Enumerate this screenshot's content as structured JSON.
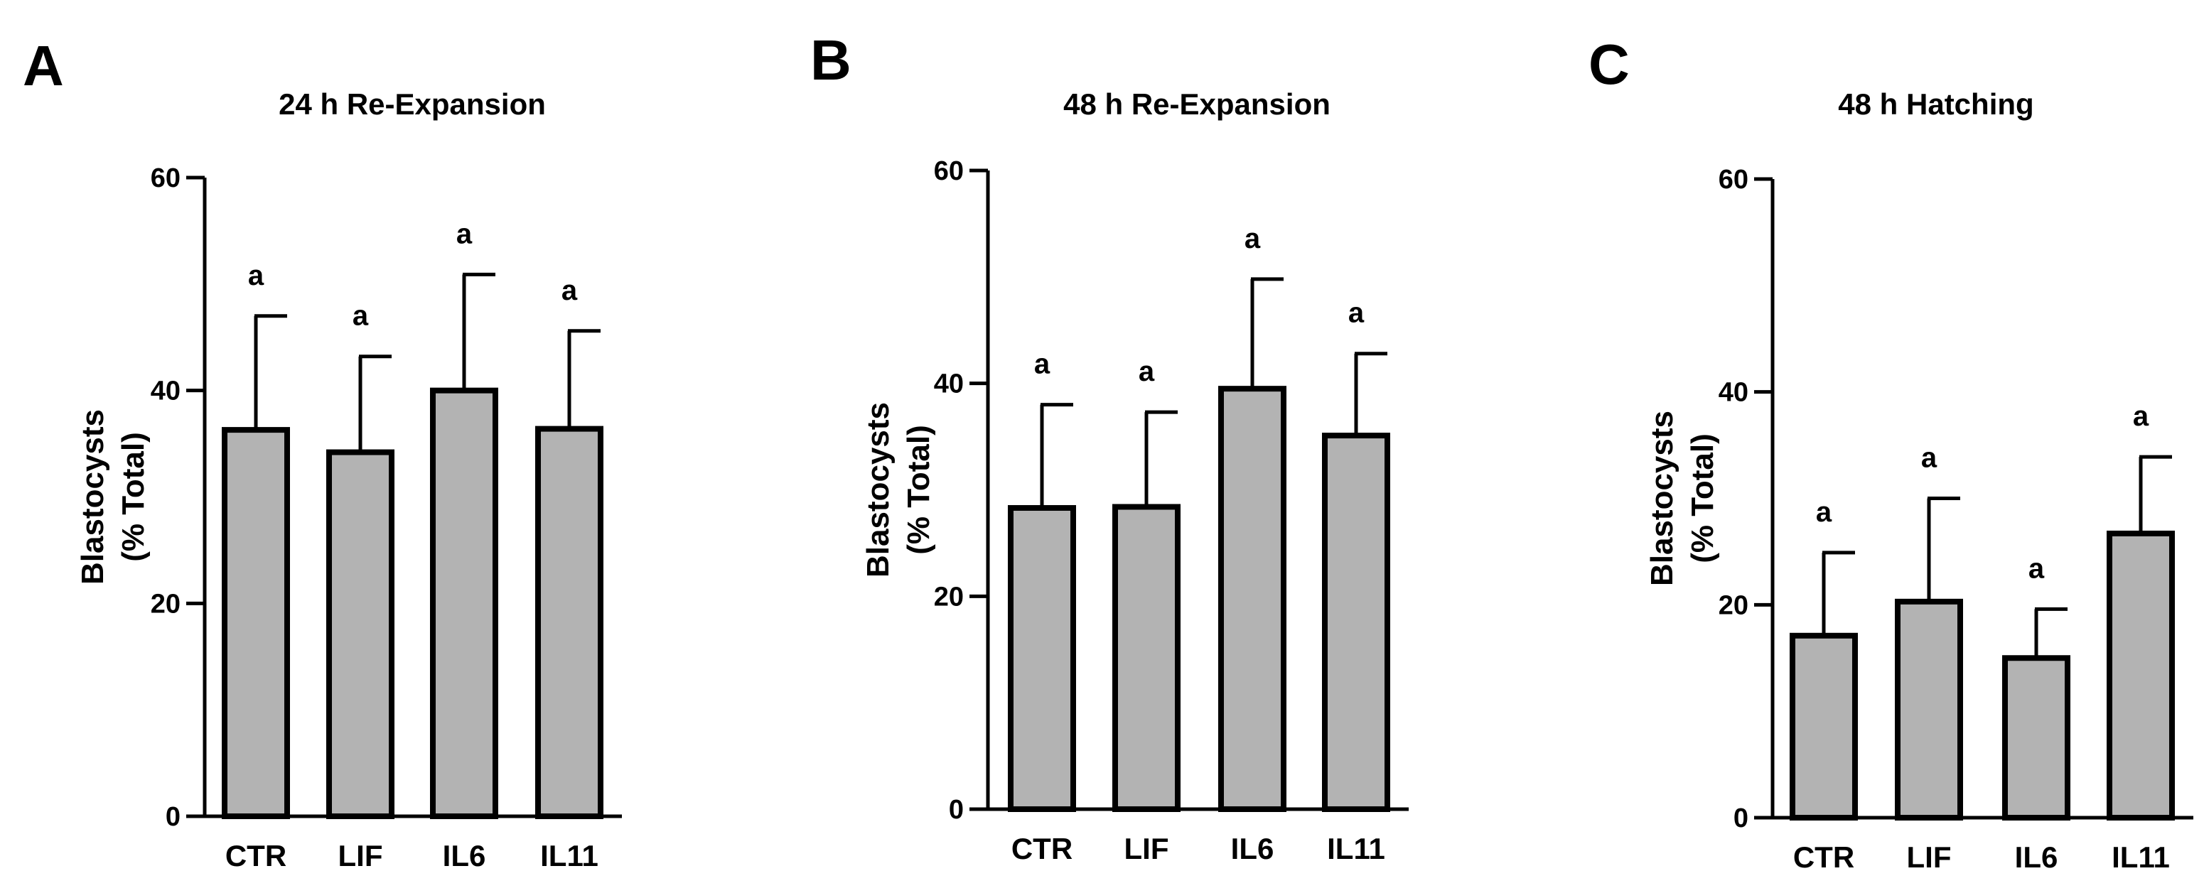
{
  "chart_data": [
    {
      "type": "bar",
      "panel": "A",
      "title": "24 h Re-Expansion",
      "ylabel_line1": "Blastocysts",
      "ylabel_line2": "(% Total)",
      "ylim": [
        0,
        60
      ],
      "yticks": [
        "0",
        "20",
        "40",
        "60"
      ],
      "categories": [
        "CTR",
        "LIF",
        "IL6",
        "IL11"
      ],
      "values": [
        36.3,
        34.2,
        40.0,
        36.4
      ],
      "errors": [
        10.7,
        9.0,
        10.9,
        9.2
      ],
      "significance": [
        "a",
        "a",
        "a",
        "a"
      ]
    },
    {
      "type": "bar",
      "panel": "B",
      "title": "48 h Re-Expansion",
      "ylabel_line1": "Blastocysts",
      "ylabel_line2": "(% Total)",
      "ylim": [
        0,
        60
      ],
      "yticks": [
        "0",
        "20",
        "40",
        "60"
      ],
      "categories": [
        "CTR",
        "LIF",
        "IL6",
        "IL11"
      ],
      "values": [
        28.3,
        28.4,
        39.5,
        35.1
      ],
      "errors": [
        9.7,
        8.9,
        10.3,
        7.7
      ],
      "significance": [
        "a",
        "a",
        "a",
        "a"
      ]
    },
    {
      "type": "bar",
      "panel": "C",
      "title": "48 h Hatching",
      "ylabel_line1": "Blastocysts",
      "ylabel_line2": "(% Total)",
      "ylim": [
        0,
        60
      ],
      "yticks": [
        "0",
        "20",
        "40",
        "60"
      ],
      "categories": [
        "CTR",
        "LIF",
        "IL6",
        "IL11"
      ],
      "values": [
        17.1,
        20.3,
        15.0,
        26.7
      ],
      "errors": [
        7.8,
        9.7,
        4.6,
        7.2
      ],
      "significance": [
        "a",
        "a",
        "a",
        "a"
      ]
    }
  ]
}
